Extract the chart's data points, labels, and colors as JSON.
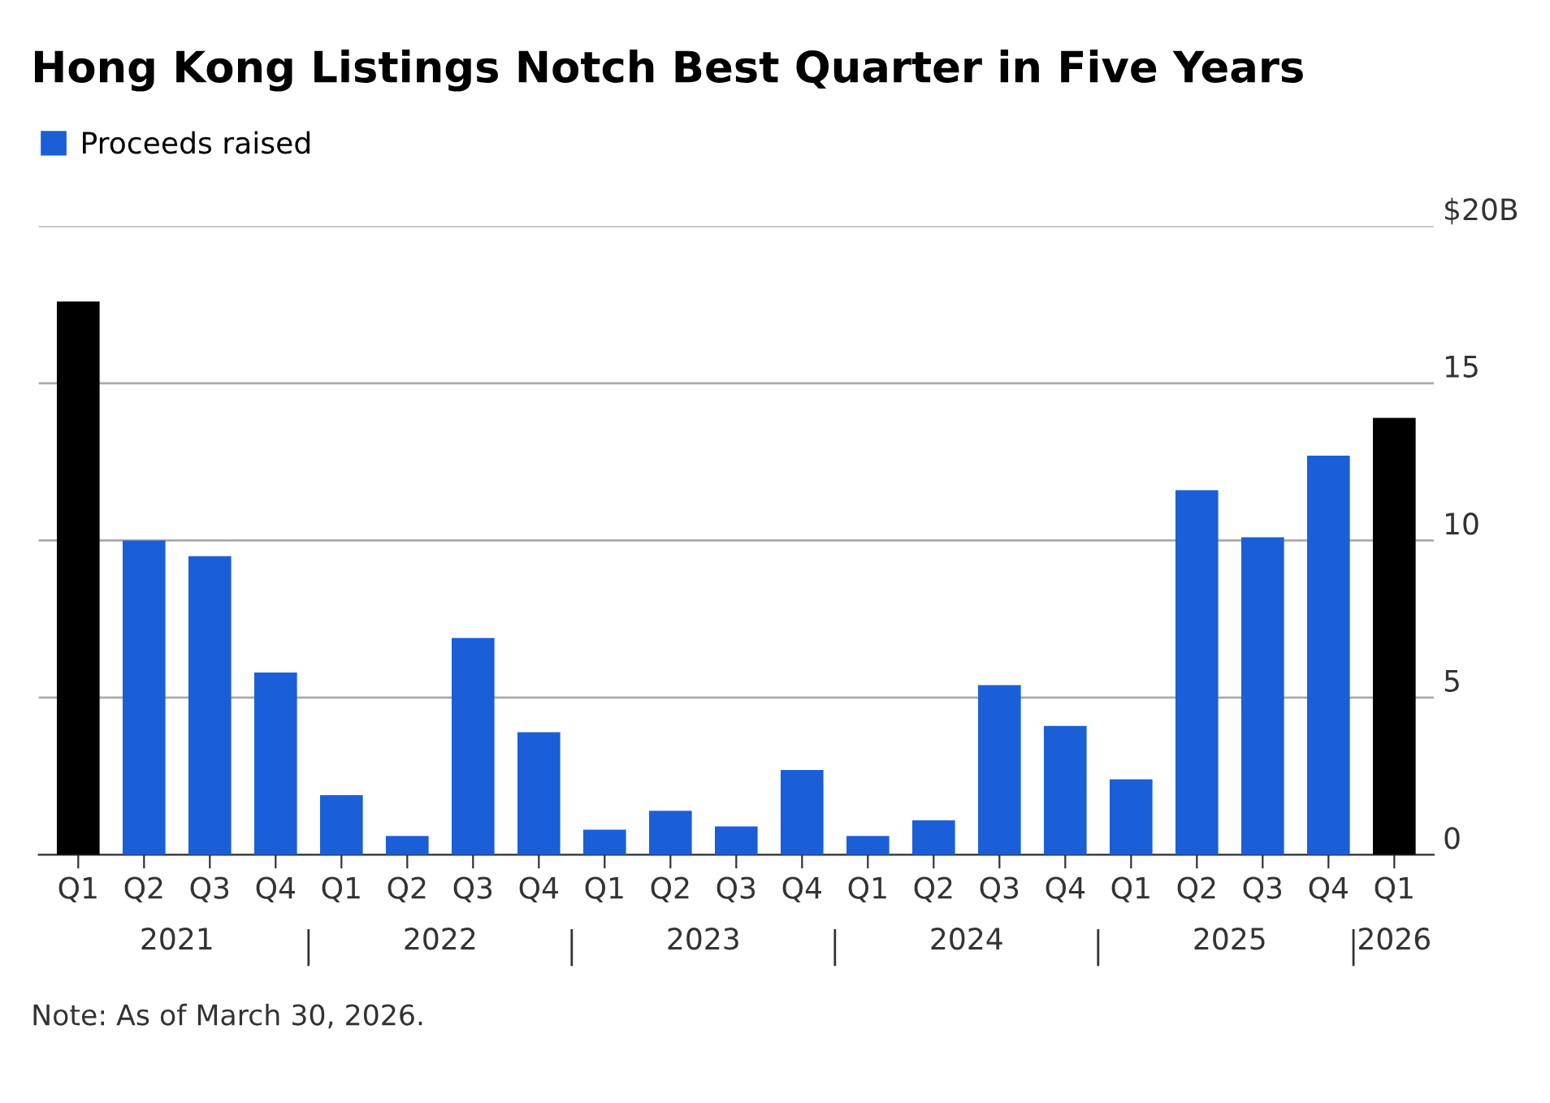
{
  "chart_data": {
    "type": "bar",
    "title": "Hong Kong Listings Notch Best Quarter in Five Years",
    "categories": [
      "Q1",
      "Q2",
      "Q3",
      "Q4",
      "Q1",
      "Q2",
      "Q3",
      "Q4",
      "Q1",
      "Q2",
      "Q3",
      "Q4",
      "Q1",
      "Q2",
      "Q3",
      "Q4",
      "Q1",
      "Q2",
      "Q3",
      "Q4",
      "Q1"
    ],
    "series": [
      {
        "name": "Proceeds raised",
        "color": "#1a5fd8",
        "values": [
          17.6,
          10.0,
          9.5,
          5.8,
          1.9,
          0.6,
          6.9,
          3.9,
          0.8,
          1.4,
          0.9,
          2.7,
          0.6,
          1.1,
          5.4,
          4.1,
          2.4,
          11.6,
          10.1,
          12.7,
          13.9
        ],
        "colors": [
          "#000000",
          "#1a5fd8",
          "#1a5fd8",
          "#1a5fd8",
          "#1a5fd8",
          "#1a5fd8",
          "#1a5fd8",
          "#1a5fd8",
          "#1a5fd8",
          "#1a5fd8",
          "#1a5fd8",
          "#1a5fd8",
          "#1a5fd8",
          "#1a5fd8",
          "#1a5fd8",
          "#1a5fd8",
          "#1a5fd8",
          "#1a5fd8",
          "#1a5fd8",
          "#1a5fd8",
          "#000000"
        ]
      }
    ],
    "ylim": [
      0,
      20
    ],
    "yticks": [
      0,
      5,
      10,
      15,
      {
        "value": 20,
        "label": "$20B"
      }
    ],
    "grid": "y",
    "legend": "top left",
    "annotations": [
      "2021",
      "2022",
      "2023",
      "2024",
      "2025",
      "2026",
      "Note: As of March 30, 2026."
    ]
  }
}
